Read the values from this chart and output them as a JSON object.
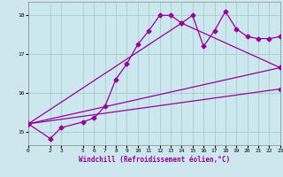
{
  "xlabel": "Windchill (Refroidissement éolien,°C)",
  "bg_color": "#cce8ee",
  "line_color": "#990099",
  "grid_color": "#aacccc",
  "xlim": [
    0,
    23
  ],
  "ylim": [
    14.65,
    18.35
  ],
  "yticks": [
    15,
    16,
    17,
    18
  ],
  "xticks": [
    0,
    2,
    3,
    5,
    6,
    7,
    8,
    9,
    10,
    11,
    12,
    13,
    14,
    15,
    16,
    17,
    18,
    19,
    20,
    21,
    22,
    23
  ],
  "series1_x": [
    0,
    2,
    3,
    5,
    6,
    7,
    8,
    9,
    10,
    11,
    12,
    13,
    14,
    15,
    16,
    17,
    18,
    19,
    20,
    21,
    22,
    23
  ],
  "series1_y": [
    15.2,
    14.82,
    15.1,
    15.25,
    15.35,
    15.65,
    16.35,
    16.75,
    17.25,
    17.6,
    18.0,
    18.0,
    17.8,
    18.0,
    17.2,
    17.6,
    18.1,
    17.65,
    17.45,
    17.4,
    17.4,
    17.45
  ],
  "series2_x": [
    0,
    23
  ],
  "series2_y": [
    15.2,
    16.65
  ],
  "series3_x": [
    0,
    23
  ],
  "series3_y": [
    15.2,
    16.1
  ],
  "series4_x": [
    0,
    14,
    23
  ],
  "series4_y": [
    15.2,
    17.8,
    16.65
  ],
  "marker": "D",
  "markersize": 2.5,
  "linewidth": 0.9
}
